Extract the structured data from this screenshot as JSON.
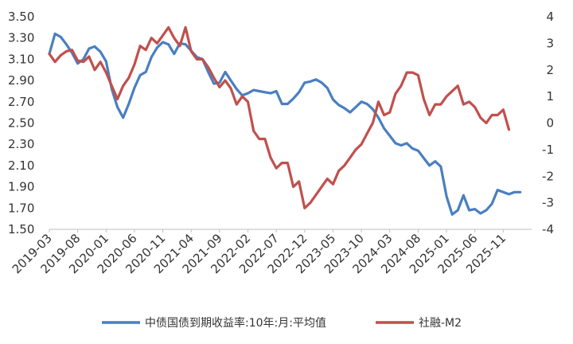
{
  "chart_data": {
    "type": "line",
    "title": "",
    "xlabel": "",
    "ylabel": "",
    "grid": false,
    "legend_position": "bottom",
    "x_tick_labels": [
      "2019-03",
      "2019-08",
      "2020-01",
      "2020-06",
      "2020-11",
      "2021-04",
      "2021-09",
      "2022-02",
      "2022-07",
      "2022-12",
      "2023-05",
      "2023-10",
      "2024-03",
      "2024-08",
      "2025-01",
      "2025-06",
      "2025-11"
    ],
    "y_left": {
      "ticks": [
        "1.50",
        "1.70",
        "1.90",
        "2.10",
        "2.30",
        "2.50",
        "2.70",
        "2.90",
        "3.10",
        "3.30",
        "3.50"
      ],
      "min": 1.5,
      "max": 3.5
    },
    "y_right": {
      "ticks": [
        "-4",
        "-3",
        "-2",
        "-1",
        "0",
        "1",
        "2",
        "3",
        "4"
      ],
      "min": -4,
      "max": 4
    },
    "x_start": "2019-03",
    "series": [
      {
        "name": "中债国债到期收益率:10年:月:平均值",
        "color": "#4a7fc1",
        "axis": "left",
        "values": [
          3.15,
          3.34,
          3.31,
          3.24,
          3.16,
          3.06,
          3.1,
          3.2,
          3.22,
          3.17,
          3.08,
          2.82,
          2.65,
          2.55,
          2.68,
          2.83,
          2.95,
          2.98,
          3.12,
          3.21,
          3.26,
          3.24,
          3.15,
          3.25,
          3.24,
          3.18,
          3.12,
          3.1,
          2.98,
          2.87,
          2.88,
          2.98,
          2.9,
          2.82,
          2.76,
          2.78,
          2.81,
          2.8,
          2.79,
          2.78,
          2.8,
          2.68,
          2.68,
          2.73,
          2.79,
          2.88,
          2.89,
          2.91,
          2.88,
          2.83,
          2.72,
          2.67,
          2.64,
          2.6,
          2.65,
          2.7,
          2.68,
          2.63,
          2.55,
          2.45,
          2.38,
          2.31,
          2.29,
          2.31,
          2.26,
          2.24,
          2.17,
          2.1,
          2.14,
          2.09,
          1.81,
          1.64,
          1.68,
          1.82,
          1.68,
          1.69,
          1.65,
          1.68,
          1.74,
          1.87,
          1.85,
          1.83,
          1.85,
          1.85
        ]
      },
      {
        "name": "社融-M2",
        "color": "#c0504d",
        "axis": "right",
        "values": [
          2.6,
          2.3,
          2.55,
          2.7,
          2.75,
          2.35,
          2.3,
          2.5,
          2.0,
          2.3,
          1.9,
          1.4,
          0.9,
          1.4,
          1.7,
          2.2,
          2.9,
          2.75,
          3.2,
          3.0,
          3.3,
          3.6,
          3.2,
          2.9,
          3.6,
          2.7,
          2.4,
          2.4,
          2.1,
          1.7,
          1.35,
          1.6,
          1.3,
          0.7,
          1.0,
          0.8,
          -0.3,
          -0.6,
          -0.6,
          -1.3,
          -1.7,
          -1.5,
          -1.5,
          -2.4,
          -2.2,
          -3.2,
          -3.0,
          -2.7,
          -2.4,
          -2.1,
          -2.3,
          -1.8,
          -1.6,
          -1.3,
          -1.0,
          -0.8,
          -0.4,
          0.0,
          0.8,
          0.3,
          0.4,
          1.1,
          1.4,
          1.9,
          1.9,
          1.8,
          0.9,
          0.3,
          0.7,
          0.7,
          1.0,
          1.2,
          1.4,
          0.7,
          0.8,
          0.6,
          0.2,
          0.0,
          0.3,
          0.3,
          0.5,
          -0.25
        ]
      }
    ]
  }
}
